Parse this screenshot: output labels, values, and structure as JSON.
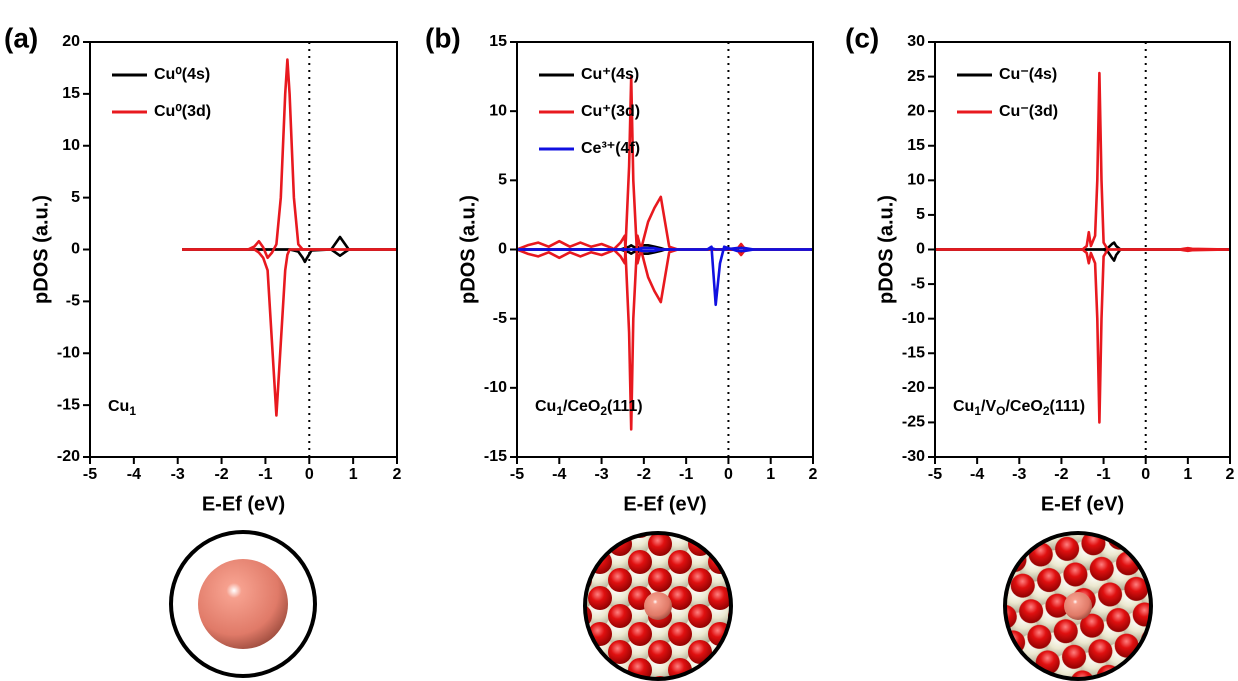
{
  "chart_data": [
    {
      "type": "line",
      "panel_label": "(a)",
      "xlabel": "E-Ef (eV)",
      "ylabel": "pDOS (a.u.)",
      "annotation": [
        "Cu",
        "1"
      ],
      "legend": "upper left",
      "reference_x": 0,
      "xlim": [
        -5,
        2
      ],
      "xticks": [
        -5,
        -4,
        -3,
        -2,
        -1,
        0,
        1,
        2
      ],
      "ylim": [
        -20,
        20
      ],
      "yticks": [
        -20,
        -15,
        -10,
        -5,
        0,
        5,
        10,
        15,
        20
      ],
      "x": [
        -2.9,
        -1.4,
        -1.25,
        -1.15,
        -1.05,
        -0.95,
        -0.85,
        -0.75,
        -0.65,
        -0.55,
        -0.5,
        -0.45,
        -0.35,
        -0.25,
        -0.15,
        -0.1,
        -0.05,
        0.05,
        0.5,
        0.6,
        0.7,
        0.8,
        0.9,
        1.1,
        2
      ],
      "series": [
        {
          "name": "Cu⁰(4s)",
          "color": "#000000",
          "values": [
            0,
            0,
            0,
            0,
            0,
            0,
            0,
            0,
            0,
            0,
            0,
            0,
            0,
            0,
            0,
            0,
            0,
            0,
            0,
            0.6,
            1.2,
            0.6,
            0,
            0,
            0
          ],
          "down_values": [
            0,
            0,
            0,
            0,
            0,
            0,
            0,
            0,
            0,
            0,
            0,
            0,
            -0.1,
            -0.2,
            -0.8,
            -1.2,
            -0.8,
            -0.1,
            0,
            -0.3,
            -0.6,
            -0.3,
            0,
            0,
            0
          ]
        },
        {
          "name": "Cu⁰(3d)",
          "color": "#e8191f",
          "values": [
            0,
            0,
            0.3,
            0.8,
            0.2,
            -0.8,
            -0.3,
            0.5,
            5,
            15,
            18.3,
            15,
            5,
            0.5,
            0,
            0,
            0,
            0,
            0,
            0,
            0,
            0,
            0,
            0,
            0
          ],
          "down_values": [
            0,
            0,
            0,
            -0.3,
            -0.8,
            -2,
            -9,
            -16,
            -9,
            -2,
            -0.5,
            0,
            0,
            0,
            0,
            0,
            0,
            0,
            0,
            0,
            0,
            0,
            0,
            0,
            0
          ]
        }
      ]
    },
    {
      "type": "line",
      "panel_label": "(b)",
      "xlabel": "E-Ef (eV)",
      "ylabel": "pDOS (a.u.)",
      "annotation": [
        "Cu",
        "1",
        "/CeO",
        "2",
        "(111)"
      ],
      "legend": "upper left",
      "reference_x": 0,
      "xlim": [
        -5,
        2
      ],
      "xticks": [
        -5,
        -4,
        -3,
        -2,
        -1,
        0,
        1,
        2
      ],
      "ylim": [
        -15,
        15
      ],
      "yticks": [
        -15,
        -10,
        -5,
        0,
        5,
        10,
        15
      ],
      "x": [
        -5,
        -4.75,
        -4.5,
        -4.25,
        -4,
        -3.75,
        -3.5,
        -3.25,
        -3,
        -2.75,
        -2.55,
        -2.45,
        -2.35,
        -2.3,
        -2.25,
        -2.15,
        -2.05,
        -1.9,
        -1.75,
        -1.6,
        -1.5,
        -1.4,
        -1.2,
        -0.5,
        -0.4,
        -0.3,
        -0.2,
        -0.1,
        0.2,
        0.3,
        0.4,
        0.6,
        2
      ],
      "series": [
        {
          "name": "Cu⁺(4s)",
          "color": "#000000",
          "values": [
            0,
            0,
            0,
            0,
            0,
            0,
            0,
            0,
            0,
            0,
            0,
            0.1,
            0.2,
            0.3,
            0.2,
            0.1,
            0.3,
            0.3,
            0.2,
            0.1,
            0,
            0,
            0,
            0,
            0,
            0,
            0,
            0,
            0,
            0.3,
            0,
            0,
            0
          ],
          "down_values": [
            0,
            0,
            0,
            0,
            0,
            0,
            0,
            0,
            0,
            0,
            0,
            -0.1,
            -0.2,
            -0.3,
            -0.2,
            -0.1,
            -0.3,
            -0.3,
            -0.2,
            -0.1,
            0,
            0,
            0,
            0,
            0,
            0,
            0,
            0,
            0,
            -0.3,
            0,
            0,
            0
          ]
        },
        {
          "name": "Cu⁺(3d)",
          "color": "#e8191f",
          "values": [
            0,
            0.3,
            0.5,
            0.2,
            0.6,
            0.2,
            0.5,
            0.2,
            0.4,
            0.1,
            -0.5,
            -1,
            6,
            12.5,
            5,
            -1,
            0.2,
            2,
            3,
            3.8,
            2,
            0.2,
            0,
            0,
            0,
            0,
            0,
            0,
            0,
            0.4,
            0,
            0,
            0
          ],
          "down_values": [
            0,
            -0.3,
            -0.5,
            -0.2,
            -0.6,
            -0.2,
            -0.5,
            -0.2,
            -0.4,
            -0.1,
            0.5,
            1,
            -6,
            -13,
            -5,
            1,
            -0.2,
            -2,
            -3,
            -3.8,
            -2,
            -0.2,
            0,
            0,
            0,
            0,
            0,
            0,
            0,
            -0.4,
            0,
            0,
            0
          ]
        },
        {
          "name": "Ce³⁺(4f)",
          "color": "#1010e0",
          "values": [
            0,
            0,
            0,
            0,
            0,
            0,
            0,
            0,
            0,
            0,
            0,
            0,
            0,
            0,
            0,
            0,
            0.1,
            0.1,
            0.1,
            0,
            0,
            0,
            0,
            0,
            0.1,
            0,
            0,
            0,
            0.1,
            0.1,
            0.1,
            0,
            0
          ],
          "down_values": [
            0,
            0,
            0,
            0,
            0,
            0,
            0,
            0,
            0,
            0,
            0,
            0,
            0,
            0,
            0,
            0,
            -0.1,
            -0.1,
            -0.1,
            0,
            0,
            0,
            0,
            0,
            0.2,
            -4,
            -1,
            0.2,
            -0.1,
            -0.1,
            -0.1,
            0,
            0
          ]
        }
      ]
    },
    {
      "type": "line",
      "panel_label": "(c)",
      "xlabel": "E-Ef (eV)",
      "ylabel": "pDOS (a.u.)",
      "annotation": [
        "Cu",
        "1",
        "/V",
        "O",
        "/CeO",
        "2",
        "(111)"
      ],
      "legend": "upper left",
      "reference_x": 0,
      "xlim": [
        -5,
        2
      ],
      "xticks": [
        -5,
        -4,
        -3,
        -2,
        -1,
        0,
        1,
        2
      ],
      "ylim": [
        -30,
        30
      ],
      "yticks": [
        -30,
        -25,
        -20,
        -15,
        -10,
        -5,
        0,
        5,
        10,
        15,
        20,
        25,
        30
      ],
      "x": [
        -5,
        -1.5,
        -1.4,
        -1.35,
        -1.3,
        -1.2,
        -1.15,
        -1.1,
        -1.05,
        -1.0,
        -0.9,
        -0.8,
        -0.75,
        -0.7,
        -0.6,
        0.8,
        0.9,
        1.0,
        1.1,
        2
      ],
      "series": [
        {
          "name": "Cu⁻(4s)",
          "color": "#000000",
          "values": [
            0,
            0,
            0,
            0,
            0,
            0,
            0,
            0,
            0,
            0,
            0.2,
            0.8,
            1,
            0.5,
            0,
            0,
            0,
            0,
            0,
            0
          ],
          "down_values": [
            0,
            0,
            0,
            0,
            0,
            0,
            0,
            0,
            0,
            0,
            -0.3,
            -1.2,
            -1.6,
            -0.8,
            0,
            0,
            0,
            0,
            0,
            0
          ]
        },
        {
          "name": "Cu⁻(3d)",
          "color": "#e8191f",
          "values": [
            0,
            0,
            0.5,
            2.5,
            0.5,
            2,
            10,
            25.5,
            10,
            1,
            0,
            0,
            0,
            0,
            0,
            0,
            0.1,
            0.2,
            0.1,
            0
          ],
          "down_values": [
            0,
            0,
            -0.5,
            -2,
            -0.5,
            -2,
            -10,
            -25,
            -10,
            -1,
            0,
            0,
            0,
            0,
            0,
            0,
            -0.1,
            -0.2,
            -0.1,
            0
          ]
        }
      ]
    }
  ]
}
